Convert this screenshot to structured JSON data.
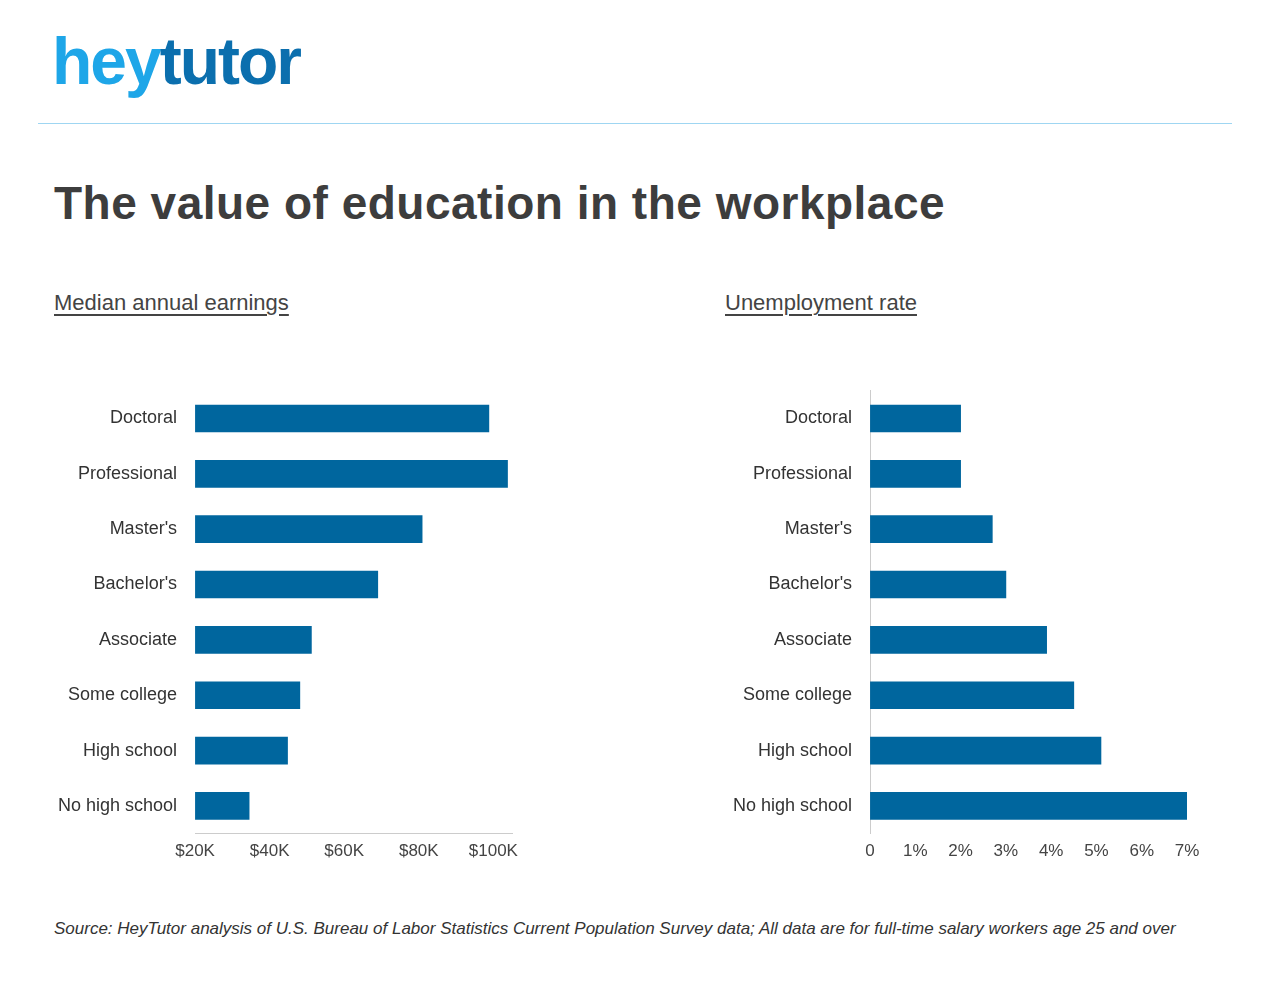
{
  "header": {
    "logo_parts": [
      "hey",
      "tutor"
    ],
    "title": "The value of education in the workplace"
  },
  "chart_data": [
    {
      "type": "bar",
      "orientation": "horizontal",
      "title": "Median annual earnings",
      "categories": [
        "Doctoral",
        "Professional",
        "Master's",
        "Bachelor's",
        "Associate",
        "Some college",
        "High school",
        "No high school"
      ],
      "values": [
        98800,
        103800,
        80900,
        69000,
        51200,
        48100,
        44800,
        34500
      ],
      "color": "#00669e",
      "xlim": [
        20000,
        105000
      ],
      "xticks": [
        {
          "value": 20000,
          "label": "$20K"
        },
        {
          "value": 40000,
          "label": "$40K"
        },
        {
          "value": 60000,
          "label": "$60K"
        },
        {
          "value": 80000,
          "label": "$80K"
        },
        {
          "value": 100000,
          "label": "$100K"
        }
      ],
      "grid": false
    },
    {
      "type": "bar",
      "orientation": "horizontal",
      "title": "Unemployment rate",
      "categories": [
        "Doctoral",
        "Professional",
        "Master's",
        "Bachelor's",
        "Associate",
        "Some college",
        "High school",
        "No high school"
      ],
      "values": [
        2.0,
        2.0,
        2.7,
        3.0,
        3.9,
        4.5,
        5.1,
        7.0
      ],
      "color": "#00669e",
      "xlim": [
        0,
        7
      ],
      "xticks": [
        0,
        {
          "value": 1,
          "label": "1%"
        },
        {
          "value": 2,
          "label": "2%"
        },
        {
          "value": 3,
          "label": "3%"
        },
        {
          "value": 4,
          "label": "4%"
        },
        {
          "value": 5,
          "label": "5%"
        },
        {
          "value": 6,
          "label": "6%"
        },
        {
          "value": 7,
          "label": "7%"
        }
      ],
      "grid": false
    }
  ],
  "source": "Source: HeyTutor analysis of U.S. Bureau of Labor Statistics Current Population Survey data; All data are for full-time salary workers age 25 and over"
}
